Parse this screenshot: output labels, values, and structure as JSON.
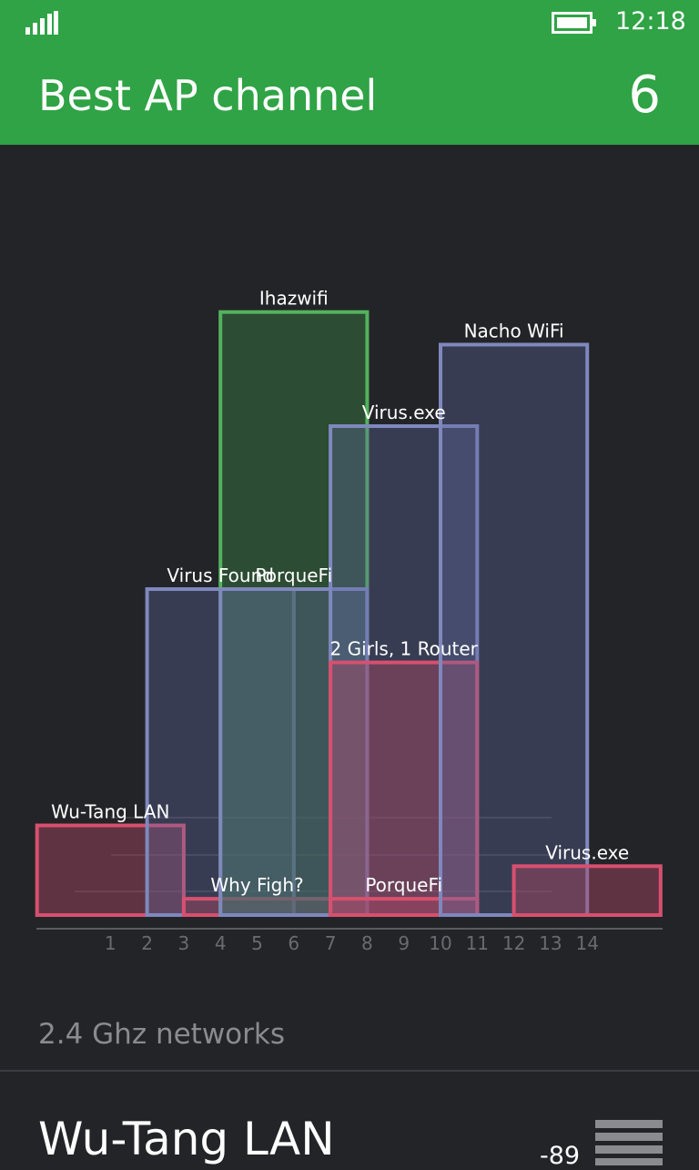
{
  "status_bar": {
    "time": "12:18"
  },
  "header": {
    "title": "Best AP channel",
    "best_channel": "6"
  },
  "band_label": "2.4 Ghz networks",
  "selected_network": {
    "name": "Wu-Tang LAN",
    "rssi": "-89"
  },
  "icons": {
    "signal": "signal-strength-icon",
    "battery": "battery-icon",
    "menu": "signal-bars-icon"
  },
  "colors": {
    "accent": "#2fa345",
    "background": "#232428",
    "blue": "#7f88bd",
    "green": "#54b25d",
    "red": "#d7506f"
  },
  "chart_data": {
    "type": "bar",
    "x_ticks": [
      "1",
      "2",
      "3",
      "4",
      "5",
      "6",
      "7",
      "8",
      "9",
      "10",
      "11",
      "12",
      "13",
      "14"
    ],
    "xlim": [
      0,
      15
    ],
    "ylim": [
      -100,
      -20
    ],
    "networks": [
      {
        "name": "Wu-Tang LAN",
        "channel": 1,
        "signal": -89,
        "color": "red"
      },
      {
        "name": "Virus Found",
        "channel": 4,
        "signal": -60,
        "color": "blue"
      },
      {
        "name": "Why Figh?",
        "channel": 5,
        "signal": -98,
        "color": "red"
      },
      {
        "name": "Ihazwifi",
        "channel": 6,
        "signal": -26,
        "color": "green"
      },
      {
        "name": "PorqueFi",
        "channel": 6,
        "signal": -60,
        "color": "blue"
      },
      {
        "name": "Virus.exe",
        "channel": 9,
        "signal": -40,
        "color": "blue"
      },
      {
        "name": "2 Girls, 1 Router",
        "channel": 9,
        "signal": -69,
        "color": "red"
      },
      {
        "name": "PorqueFi",
        "channel": 9,
        "signal": -98,
        "color": "red"
      },
      {
        "name": "Nacho WiFi",
        "channel": 12,
        "signal": -30,
        "color": "blue"
      },
      {
        "name": "Virus.exe",
        "channel": 14,
        "signal": -94,
        "color": "red"
      }
    ]
  }
}
